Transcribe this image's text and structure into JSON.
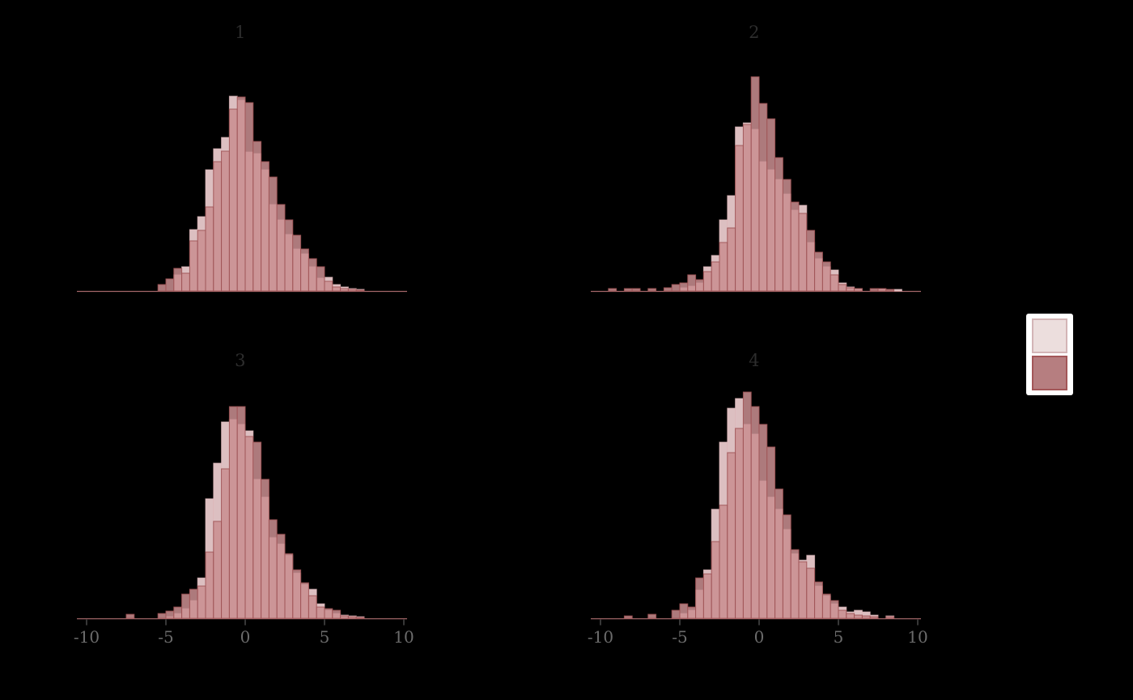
{
  "figure": {
    "background": "#000000",
    "font_note": "serif numerals, no visible y axis, no visible legend text"
  },
  "legend": {
    "position": "right",
    "background": "#ffffff",
    "keys": [
      {
        "name": "series-light",
        "fill": "#ecdedd",
        "border": "#d3b5b6"
      },
      {
        "name": "series-dark",
        "fill": "#b67e80",
        "border": "#a35658"
      }
    ]
  },
  "chart_data": {
    "type": "bar",
    "subtype": "overlaid-histograms-faceted",
    "facets": [
      "1",
      "2",
      "3",
      "4"
    ],
    "x_ticks": [
      -10,
      -5,
      0,
      5,
      10
    ],
    "x_tick_labels": [
      "-10",
      "-5",
      "0",
      "5",
      "10"
    ],
    "x_range": [
      -10.5,
      10.5
    ],
    "binwidth": 0.5,
    "grid": "off",
    "y_axis_visible": false,
    "legend_position": "right",
    "axis_line_color": "#a46769",
    "tick_color": "#454545",
    "tick_label_color": "#6b6b6b",
    "title_color": "#2d2d2d",
    "series": [
      {
        "name": "light",
        "fill": "#efcfd1",
        "fill_opacity": 0.92,
        "stroke": "#dcb6b8",
        "stroke_opacity": 0.75
      },
      {
        "name": "dark",
        "fill": "#c98e90",
        "fill_opacity": 0.86,
        "stroke": "#9d5254",
        "stroke_opacity": 0.9
      }
    ],
    "height_units": "pixels above baseline (no y scale shown in figure)",
    "panels": [
      {
        "title": "1",
        "show_x_axis": false,
        "bin_start": -5.5,
        "light": [
          0,
          0,
          20,
          30,
          76,
          92,
          150,
          176,
          190,
          241,
          236,
          172,
          170,
          150,
          107,
          88,
          70,
          52,
          46,
          30,
          16,
          17,
          8,
          5,
          3,
          2
        ],
        "dark": [
          8,
          15,
          28,
          22,
          62,
          75,
          104,
          160,
          173,
          225,
          240,
          233,
          185,
          160,
          141,
          107,
          88,
          69,
          52,
          40,
          30,
          12,
          5,
          3,
          2,
          1
        ]
      },
      {
        "title": "2",
        "show_x_axis": false,
        "bin_start": -9.5,
        "light": [
          0,
          0,
          0,
          0,
          0,
          0,
          0,
          0,
          0,
          4,
          6,
          10,
          30,
          44,
          88,
          118,
          203,
          208,
          200,
          160,
          150,
          138,
          120,
          100,
          106,
          60,
          40,
          30,
          26,
          10,
          5,
          3,
          0,
          0,
          2,
          0,
          2
        ],
        "dark": [
          3,
          0,
          3,
          3,
          0,
          3,
          0,
          4,
          8,
          10,
          20,
          14,
          24,
          36,
          60,
          78,
          180,
          206,
          265,
          232,
          213,
          165,
          138,
          110,
          96,
          75,
          48,
          36,
          20,
          8,
          4,
          3,
          0,
          3,
          3,
          2,
          0
        ]
      },
      {
        "title": "3",
        "show_x_axis": true,
        "bin_start": -7.5,
        "light": [
          0,
          0,
          0,
          0,
          0,
          2,
          6,
          12,
          22,
          50,
          148,
          192,
          243,
          246,
          240,
          232,
          172,
          150,
          100,
          92,
          78,
          56,
          42,
          36,
          18,
          10,
          6,
          4,
          3,
          2
        ],
        "dark": [
          5,
          0,
          0,
          0,
          6,
          9,
          14,
          30,
          36,
          40,
          82,
          120,
          185,
          262,
          262,
          225,
          218,
          172,
          122,
          104,
          80,
          60,
          44,
          28,
          14,
          12,
          10,
          3,
          2,
          1
        ]
      },
      {
        "title": "4",
        "show_x_axis": true,
        "bin_start": -8.5,
        "light": [
          0,
          0,
          0,
          0,
          0,
          0,
          0,
          6,
          10,
          35,
          60,
          135,
          218,
          260,
          272,
          240,
          228,
          170,
          150,
          135,
          110,
          80,
          72,
          78,
          40,
          28,
          18,
          14,
          8,
          10,
          8,
          4,
          0,
          3
        ],
        "dark": [
          3,
          0,
          0,
          5,
          0,
          0,
          10,
          18,
          14,
          50,
          55,
          95,
          140,
          205,
          235,
          280,
          262,
          240,
          212,
          160,
          128,
          85,
          70,
          62,
          45,
          30,
          22,
          10,
          6,
          4,
          3,
          2,
          0,
          2
        ]
      }
    ]
  }
}
